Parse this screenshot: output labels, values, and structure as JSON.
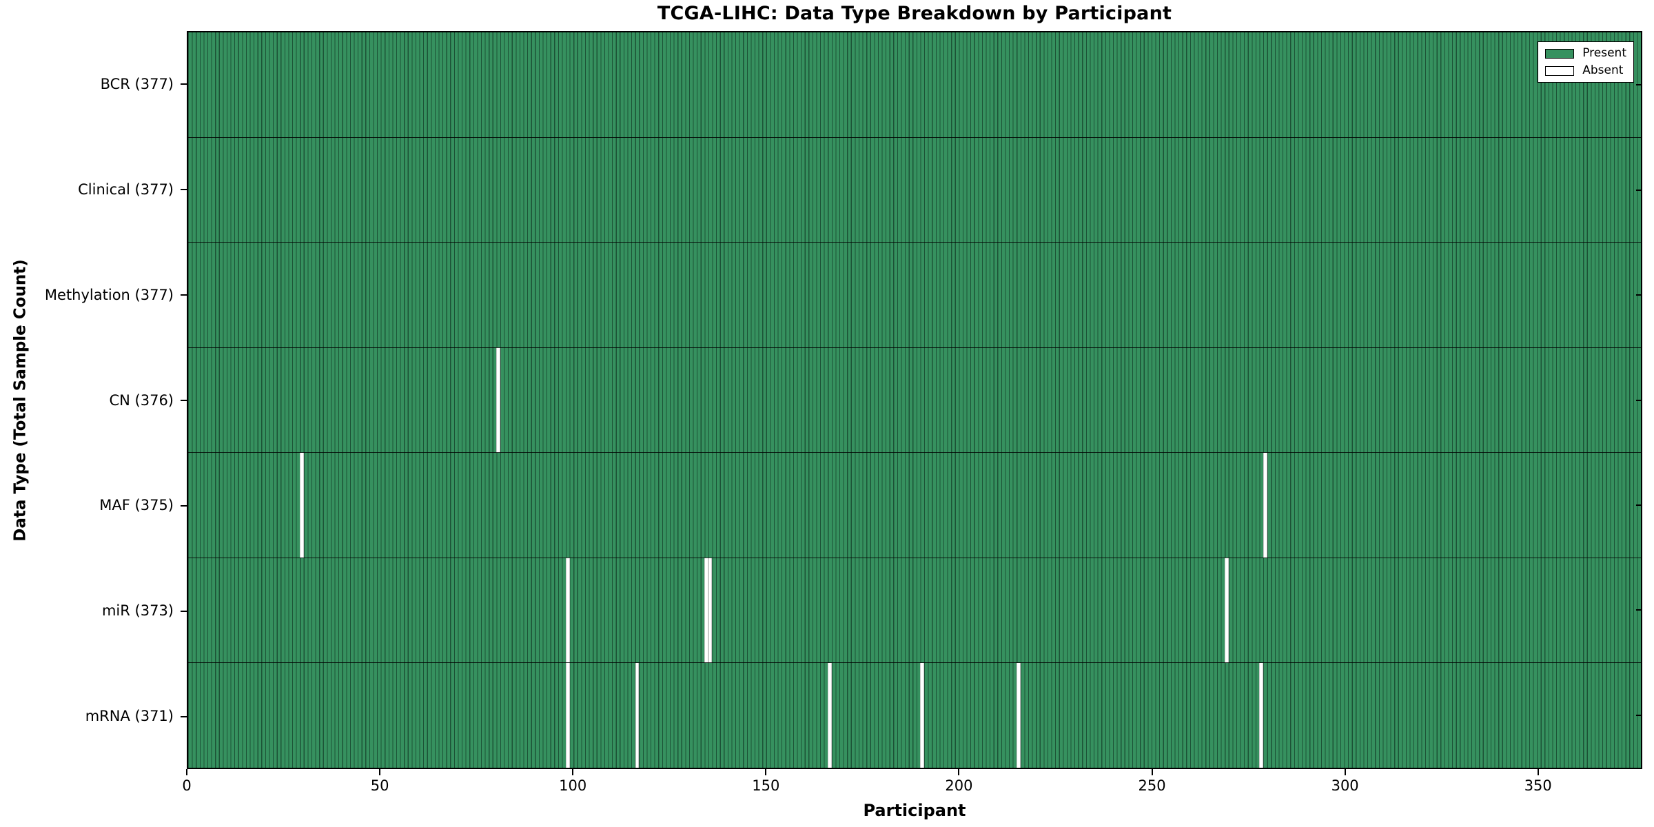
{
  "title": "TCGA-LIHC: Data Type Breakdown by Participant",
  "axes": {
    "x_label": "Participant",
    "y_label": "Data Type (Total Sample Count)",
    "x_ticks": [
      0,
      50,
      100,
      150,
      200,
      250,
      300,
      350
    ],
    "x_range": [
      0,
      377
    ]
  },
  "legend": {
    "items": [
      {
        "label": "Present"
      },
      {
        "label": "Absent"
      }
    ]
  },
  "colors": {
    "present_fill": "#36915F",
    "bar_edge_dark": "#1C5236",
    "absent_fill": "#FFFFFF",
    "plot_border": "#000000",
    "background": "#FFFFFF"
  },
  "chart_data": {
    "type": "heatmap",
    "title": "TCGA-LIHC: Data Type Breakdown by Participant",
    "xlabel": "Participant",
    "ylabel": "Data Type (Total Sample Count)",
    "x_range": [
      0,
      377
    ],
    "total_participants": 377,
    "legend_entries": [
      "Present",
      "Absent"
    ],
    "legend_position": "upper right",
    "rows": [
      {
        "label": "BCR (377)",
        "data_type": "BCR",
        "present_count": 377,
        "absent_participants": []
      },
      {
        "label": "Clinical (377)",
        "data_type": "Clinical",
        "present_count": 377,
        "absent_participants": []
      },
      {
        "label": "Methylation (377)",
        "data_type": "Methylation",
        "present_count": 377,
        "absent_participants": []
      },
      {
        "label": "CN (376)",
        "data_type": "CN",
        "present_count": 376,
        "absent_participants": [
          80
        ]
      },
      {
        "label": "MAF (375)",
        "data_type": "MAF",
        "present_count": 375,
        "absent_participants": [
          29,
          279
        ]
      },
      {
        "label": "miR (373)",
        "data_type": "miR",
        "present_count": 373,
        "absent_participants": [
          98,
          134,
          135,
          269
        ]
      },
      {
        "label": "mRNA (371)",
        "data_type": "mRNA",
        "present_count": 371,
        "absent_participants": [
          98,
          116,
          166,
          190,
          215,
          278
        ]
      }
    ]
  }
}
